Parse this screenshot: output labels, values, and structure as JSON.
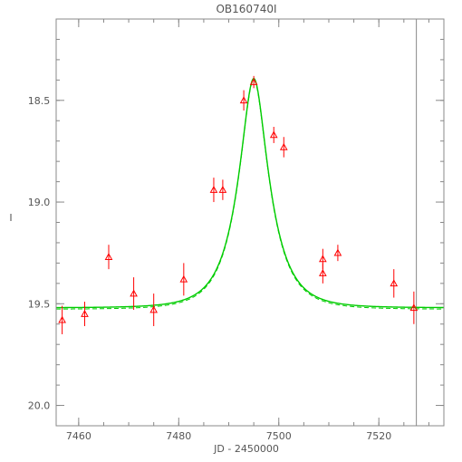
{
  "chart_data": {
    "type": "scatter",
    "title": "OB160740I",
    "xlabel": "JD - 2450000",
    "ylabel": "I",
    "xlim": [
      7455.5,
      7533
    ],
    "ylim": [
      20.1,
      18.1
    ],
    "y_inverted": true,
    "x_ticks": [
      7460,
      7480,
      7500,
      7520
    ],
    "y_ticks": [
      18.5,
      19.0,
      19.5,
      20.0
    ],
    "x_tick_labels": [
      "7460",
      "7480",
      "7500",
      "7520"
    ],
    "y_tick_labels": [
      "18.5",
      "19.0",
      "19.5",
      "20.0"
    ],
    "minor_x_step": 5,
    "minor_y_step": 0.1,
    "vertical_marker_x": 7527.5,
    "series": [
      {
        "marker": "triangle",
        "color": "#ff0000",
        "points": [
          {
            "x": 7456.7,
            "y": 19.58,
            "err": 0.07
          },
          {
            "x": 7461.2,
            "y": 19.55,
            "err": 0.06
          },
          {
            "x": 7466.0,
            "y": 19.27,
            "err": 0.06
          },
          {
            "x": 7471.0,
            "y": 19.45,
            "err": 0.08
          },
          {
            "x": 7475.0,
            "y": 19.53,
            "err": 0.08
          },
          {
            "x": 7481.0,
            "y": 19.38,
            "err": 0.08
          },
          {
            "x": 7487.0,
            "y": 18.94,
            "err": 0.06
          },
          {
            "x": 7488.8,
            "y": 18.94,
            "err": 0.05
          },
          {
            "x": 7493.0,
            "y": 18.5,
            "err": 0.05
          },
          {
            "x": 7495.0,
            "y": 18.41,
            "err": 0.03
          },
          {
            "x": 7499.0,
            "y": 18.67,
            "err": 0.04
          },
          {
            "x": 7501.0,
            "y": 18.73,
            "err": 0.05
          },
          {
            "x": 7508.8,
            "y": 19.28,
            "err": 0.05
          },
          {
            "x": 7508.8,
            "y": 19.35,
            "err": 0.05
          },
          {
            "x": 7511.8,
            "y": 19.25,
            "err": 0.04
          },
          {
            "x": 7523.0,
            "y": 19.4,
            "err": 0.07
          },
          {
            "x": 7527.0,
            "y": 19.52,
            "err": 0.08
          }
        ]
      }
    ],
    "model_curve": {
      "color": "#00cc00",
      "t0": 7495.0,
      "tE": 6.0,
      "baseline": 19.52,
      "peak": 18.4
    }
  }
}
